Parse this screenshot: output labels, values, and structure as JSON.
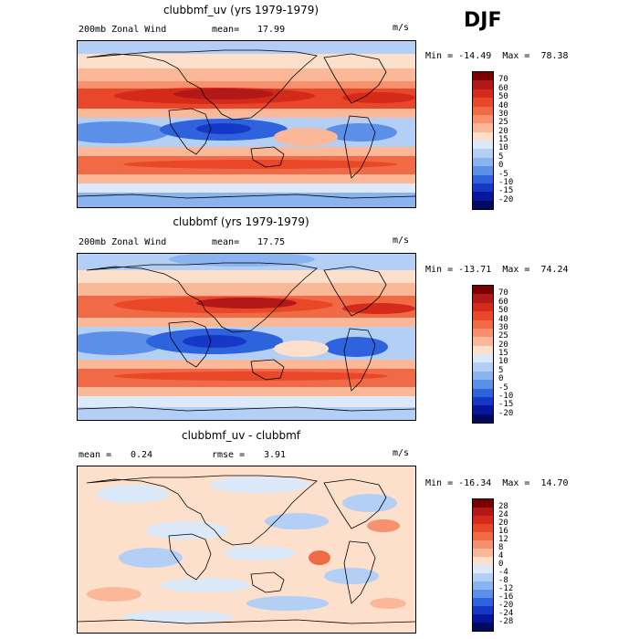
{
  "season": "DJF",
  "panels": [
    {
      "title": "clubbmf_uv (yrs 1979-1979)",
      "left_label": "200mb Zonal Wind",
      "stat_label": "mean=",
      "stat_value": "17.99",
      "units": "m/s",
      "min_label": "Min =",
      "min_value": "-14.49",
      "max_label": "Max =",
      "max_value": "78.38",
      "levels": [
        "70",
        "60",
        "50",
        "40",
        "30",
        "25",
        "20",
        "15",
        "10",
        "5",
        "0",
        "-5",
        "-10",
        "-15",
        "-20"
      ]
    },
    {
      "title": "clubbmf (yrs 1979-1979)",
      "left_label": "200mb Zonal Wind",
      "stat_label": "mean=",
      "stat_value": "17.75",
      "units": "m/s",
      "min_label": "Min =",
      "min_value": "-13.71",
      "max_label": "Max =",
      "max_value": "74.24",
      "levels": [
        "70",
        "60",
        "50",
        "40",
        "30",
        "25",
        "20",
        "15",
        "10",
        "5",
        "0",
        "-5",
        "-10",
        "-15",
        "-20"
      ]
    },
    {
      "title": "clubbmf_uv - clubbmf",
      "left_label": "mean =",
      "left_value": "0.24",
      "stat_label": "rmse =",
      "stat_value": "3.91",
      "units": "m/s",
      "min_label": "Min =",
      "min_value": "-16.34",
      "max_label": "Max =",
      "max_value": "14.70",
      "levels": [
        "28",
        "24",
        "20",
        "16",
        "12",
        "8",
        "4",
        "0",
        "-4",
        "-8",
        "-12",
        "-16",
        "-20",
        "-24",
        "-28"
      ]
    }
  ],
  "colors": {
    "scale": [
      "#7a0000",
      "#b21818",
      "#d42a1a",
      "#e8472a",
      "#f06a45",
      "#f6906d",
      "#fbb898",
      "#fde0cc",
      "#dce9f8",
      "#b4cff5",
      "#8ab4f0",
      "#5b8fe8",
      "#2f63dd",
      "#1638c6",
      "#07169a",
      "#000a60"
    ]
  },
  "chart_data": [
    {
      "type": "heatmap",
      "title": "clubbmf_uv (yrs 1979-1979)",
      "variable": "200mb Zonal Wind",
      "units": "m/s",
      "mean": 17.99,
      "min": -14.49,
      "max": 78.38,
      "levels": [
        -20,
        -15,
        -10,
        -5,
        0,
        5,
        10,
        15,
        20,
        25,
        30,
        40,
        50,
        60,
        70
      ]
    },
    {
      "type": "heatmap",
      "title": "clubbmf (yrs 1979-1979)",
      "variable": "200mb Zonal Wind",
      "units": "m/s",
      "mean": 17.75,
      "min": -13.71,
      "max": 74.24,
      "levels": [
        -20,
        -15,
        -10,
        -5,
        0,
        5,
        10,
        15,
        20,
        25,
        30,
        40,
        50,
        60,
        70
      ]
    },
    {
      "type": "heatmap",
      "title": "clubbmf_uv - clubbmf",
      "units": "m/s",
      "mean": 0.24,
      "rmse": 3.91,
      "min": -16.34,
      "max": 14.7,
      "levels": [
        -28,
        -24,
        -20,
        -16,
        -12,
        -8,
        -4,
        0,
        4,
        8,
        12,
        16,
        20,
        24,
        28
      ]
    }
  ]
}
